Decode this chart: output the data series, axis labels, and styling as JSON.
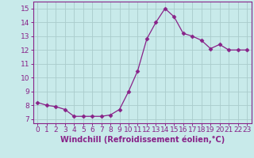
{
  "x": [
    0,
    1,
    2,
    3,
    4,
    5,
    6,
    7,
    8,
    9,
    10,
    11,
    12,
    13,
    14,
    15,
    16,
    17,
    18,
    19,
    20,
    21,
    22,
    23
  ],
  "y": [
    8.2,
    8.0,
    7.9,
    7.7,
    7.2,
    7.2,
    7.2,
    7.2,
    7.3,
    7.7,
    9.0,
    10.5,
    12.8,
    14.0,
    15.0,
    14.4,
    13.2,
    13.0,
    12.7,
    12.1,
    12.4,
    12.0,
    12.0,
    12.0
  ],
  "line_color": "#882288",
  "marker": "D",
  "marker_size": 2.5,
  "bg_color": "#c8eaea",
  "grid_color": "#aacccc",
  "xlabel": "Windchill (Refroidissement éolien,°C)",
  "xlabel_color": "#882288",
  "xlabel_fontsize": 7,
  "xtick_labels": [
    "0",
    "1",
    "2",
    "3",
    "4",
    "5",
    "6",
    "7",
    "8",
    "9",
    "10",
    "11",
    "12",
    "13",
    "14",
    "15",
    "16",
    "17",
    "18",
    "19",
    "20",
    "21",
    "22",
    "23"
  ],
  "ytick_min": 7,
  "ytick_max": 15,
  "ylim": [
    6.7,
    15.5
  ],
  "xlim": [
    -0.5,
    23.5
  ],
  "tick_fontsize": 6.5,
  "tick_color": "#882288",
  "spine_color": "#882288"
}
